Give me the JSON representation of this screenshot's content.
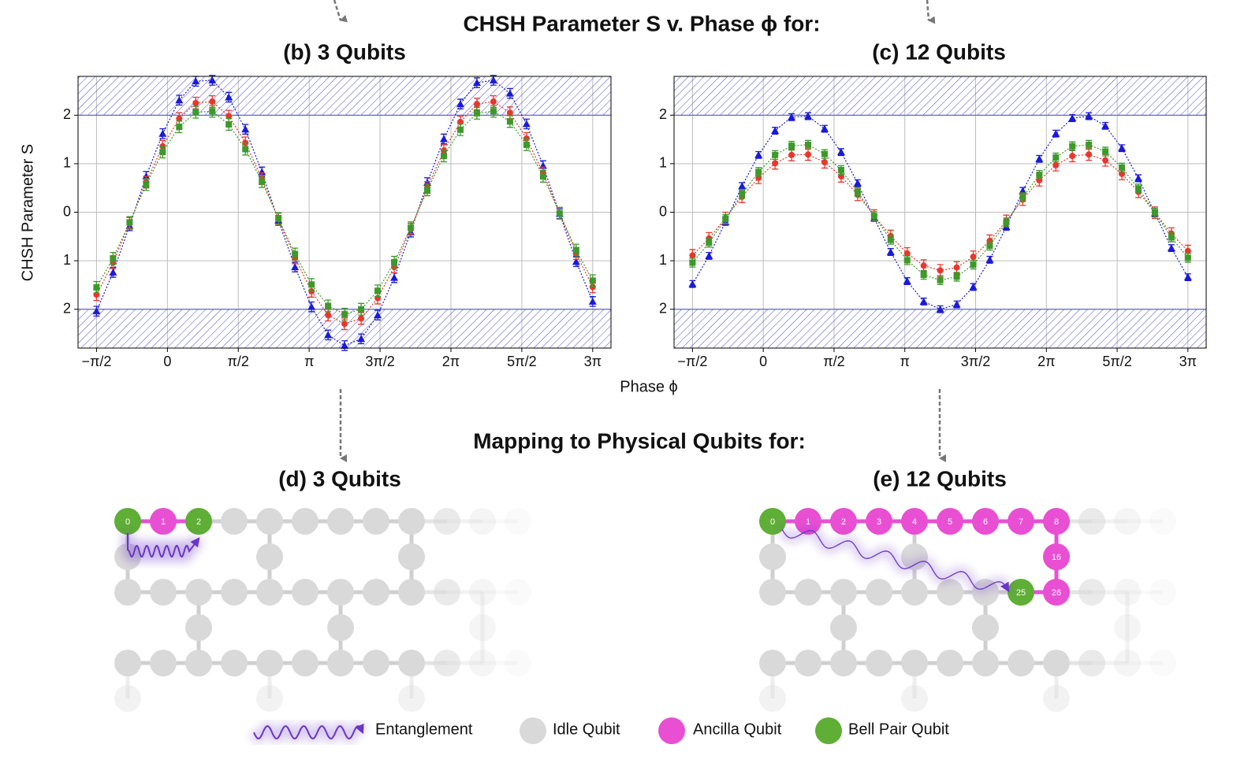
{
  "figure_title": "CHSH Parameter S v. Phase ϕ for:",
  "x_label": "Phase ϕ",
  "chart_data": [
    {
      "type": "line",
      "title": "(b) 3 Qubits",
      "y_label": "CHSH Parameter S",
      "x": [
        -1.5708,
        -1.2043,
        -0.8378,
        -0.4712,
        -0.1047,
        0.2618,
        0.6283,
        0.9948,
        1.3614,
        1.7279,
        2.0944,
        2.4609,
        2.8274,
        3.194,
        3.5605,
        3.927,
        4.2935,
        4.66,
        5.0265,
        5.3931,
        5.7596,
        6.1261,
        6.4926,
        6.8591,
        7.2257,
        7.5922,
        7.9587,
        8.3252,
        8.6917,
        9.0583,
        9.4248
      ],
      "xlim": [
        -1.98,
        9.83
      ],
      "xticks": [
        {
          "value": -1.5708,
          "label": "−π/2"
        },
        0,
        {
          "value": 1.5708,
          "label": "π/2"
        },
        {
          "value": 3.1416,
          "label": "π"
        },
        {
          "value": 4.7124,
          "label": "3π/2"
        },
        {
          "value": 6.2832,
          "label": "2π"
        },
        {
          "value": 7.854,
          "label": "5π/2"
        },
        {
          "value": 9.4248,
          "label": "3π"
        }
      ],
      "ylim": [
        -2.8,
        2.8
      ],
      "yticks": [
        {
          "value": -2,
          "label": "2"
        },
        {
          "value": -1,
          "label": "1"
        },
        0,
        1,
        2
      ],
      "grid": true,
      "hatch_regions": [
        [
          2,
          2.8
        ],
        [
          -2.8,
          -2
        ]
      ],
      "hatch_color": "#4b4bd6",
      "series": [
        {
          "color": "#1a1adb",
          "marker": "triangle",
          "error": 0.1,
          "values": [
            -2.04,
            -1.24,
            -0.28,
            0.74,
            1.62,
            2.31,
            2.7,
            2.72,
            2.37,
            1.71,
            0.83,
            -0.17,
            -1.13,
            -1.95,
            -2.53,
            -2.75,
            -2.61,
            -2.12,
            -1.35,
            -0.41,
            0.61,
            1.51,
            2.23,
            2.67,
            2.72,
            2.45,
            1.82,
            0.96,
            -0.03,
            -1.02,
            -1.84
          ]
        },
        {
          "color": "#e8372c",
          "marker": "circle",
          "error": 0.12,
          "values": [
            -1.7,
            -1.04,
            -0.23,
            0.62,
            1.36,
            1.93,
            2.25,
            2.28,
            1.98,
            1.43,
            0.69,
            -0.14,
            -0.94,
            -1.63,
            -2.12,
            -2.3,
            -2.19,
            -1.77,
            -1.13,
            -0.35,
            0.51,
            1.27,
            1.86,
            2.23,
            2.28,
            2.05,
            1.52,
            0.81,
            -0.02,
            -0.85,
            -1.54
          ]
        },
        {
          "color": "#3d9a2a",
          "marker": "square",
          "error": 0.12,
          "values": [
            -1.55,
            -0.95,
            -0.21,
            0.57,
            1.24,
            1.76,
            2.06,
            2.08,
            1.81,
            1.3,
            0.63,
            -0.13,
            -0.86,
            -1.49,
            -1.93,
            -2.1,
            -2.0,
            -1.62,
            -1.03,
            -0.32,
            0.46,
            1.16,
            1.7,
            2.04,
            2.08,
            1.87,
            1.39,
            0.74,
            -0.02,
            -0.78,
            -1.41
          ]
        }
      ]
    },
    {
      "type": "line",
      "title": "(c) 12 Qubits",
      "x": [
        -1.5708,
        -1.2043,
        -0.8378,
        -0.4712,
        -0.1047,
        0.2618,
        0.6283,
        0.9948,
        1.3614,
        1.7279,
        2.0944,
        2.4609,
        2.8274,
        3.194,
        3.5605,
        3.927,
        4.2935,
        4.66,
        5.0265,
        5.3931,
        5.7596,
        6.1261,
        6.4926,
        6.8591,
        7.2257,
        7.5922,
        7.9587,
        8.3252,
        8.6917,
        9.0583,
        9.4248
      ],
      "xlim": [
        -1.98,
        9.83
      ],
      "xticks": [
        {
          "value": -1.5708,
          "label": "−π/2"
        },
        0,
        {
          "value": 1.5708,
          "label": "π/2"
        },
        {
          "value": 3.1416,
          "label": "π"
        },
        {
          "value": 4.7124,
          "label": "3π/2"
        },
        {
          "value": 6.2832,
          "label": "2π"
        },
        {
          "value": 7.854,
          "label": "5π/2"
        },
        {
          "value": 9.4248,
          "label": "3π"
        }
      ],
      "ylim": [
        -2.8,
        2.8
      ],
      "yticks": [
        {
          "value": -2,
          "label": "2"
        },
        {
          "value": -1,
          "label": "1"
        },
        0,
        1,
        2
      ],
      "grid": true,
      "hatch_regions": [
        [
          2,
          2.8
        ],
        [
          -2.8,
          -2
        ]
      ],
      "hatch_color": "#4b4bd6",
      "series": [
        {
          "color": "#1a1adb",
          "marker": "triangle",
          "error": 0.07,
          "values": [
            -1.48,
            -0.9,
            -0.2,
            0.54,
            1.18,
            1.68,
            1.96,
            1.98,
            1.72,
            1.24,
            0.6,
            -0.12,
            -0.82,
            -1.42,
            -1.84,
            -2.0,
            -1.9,
            -1.54,
            -0.98,
            -0.3,
            0.44,
            1.1,
            1.62,
            1.94,
            1.98,
            1.78,
            1.32,
            0.7,
            -0.02,
            -0.74,
            -1.34
          ]
        },
        {
          "color": "#e8372c",
          "marker": "circle",
          "error": 0.12,
          "values": [
            -0.89,
            -0.54,
            -0.12,
            0.32,
            0.71,
            1.01,
            1.18,
            1.19,
            1.03,
            0.74,
            0.36,
            -0.07,
            -0.49,
            -0.85,
            -1.1,
            -1.2,
            -1.14,
            -0.92,
            -0.59,
            -0.18,
            0.26,
            0.66,
            0.97,
            1.16,
            1.19,
            1.07,
            0.79,
            0.42,
            -0.01,
            -0.44,
            -0.8
          ]
        },
        {
          "color": "#3d9a2a",
          "marker": "square",
          "error": 0.09,
          "values": [
            -1.04,
            -0.63,
            -0.14,
            0.38,
            0.83,
            1.18,
            1.37,
            1.39,
            1.2,
            0.87,
            0.42,
            -0.08,
            -0.57,
            -0.99,
            -1.29,
            -1.4,
            -1.33,
            -1.08,
            -0.69,
            -0.21,
            0.31,
            0.77,
            1.13,
            1.36,
            1.39,
            1.25,
            0.92,
            0.49,
            -0.01,
            -0.52,
            -0.94
          ]
        }
      ]
    }
  ],
  "mapping_title": "Mapping to Physical Qubits for:",
  "diagrams": [
    {
      "title": "(d) 3 Qubits",
      "qubits": [
        {
          "label": "0",
          "color": "#5fae36"
        },
        {
          "label": "1",
          "color": "#e94fd2"
        },
        {
          "label": "2",
          "color": "#5fae36"
        }
      ]
    },
    {
      "title": "(e) 12 Qubits",
      "qubits": [
        {
          "label": "0",
          "color": "#5fae36"
        },
        {
          "label": "1",
          "color": "#e94fd2"
        },
        {
          "label": "2",
          "color": "#e94fd2"
        },
        {
          "label": "3",
          "color": "#e94fd2"
        },
        {
          "label": "4",
          "color": "#e94fd2"
        },
        {
          "label": "5",
          "color": "#e94fd2"
        },
        {
          "label": "6",
          "color": "#e94fd2"
        },
        {
          "label": "7",
          "color": "#e94fd2"
        },
        {
          "label": "8",
          "color": "#e94fd2"
        },
        {
          "label": "16",
          "color": "#e94fd2"
        },
        {
          "label": "26",
          "color": "#e94fd2"
        },
        {
          "label": "25",
          "color": "#5fae36"
        }
      ]
    }
  ],
  "legend": [
    {
      "label": "Entanglement",
      "color": "#6a35c8"
    },
    {
      "label": "Idle Qubit",
      "color": "#d9d9d9"
    },
    {
      "label": "Ancilla Qubit",
      "color": "#e94fd2"
    },
    {
      "label": "Bell Pair Qubit",
      "color": "#5fae36"
    }
  ]
}
